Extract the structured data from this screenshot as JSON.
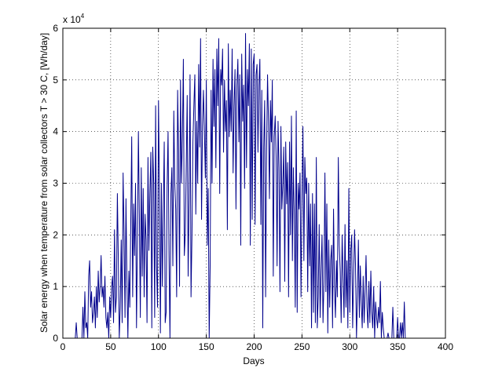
{
  "chart_data": {
    "type": "line",
    "title": "",
    "xlabel": "Days",
    "ylabel": "Solar energy when temperature from solar collectors T > 30 C, [Wh/day]",
    "y_exponent_label": "x 10",
    "y_exponent_power": "4",
    "xlim": [
      0,
      400
    ],
    "ylim": [
      0,
      6
    ],
    "y_scale_factor": 10000,
    "grid": true,
    "line_color": "#00008b",
    "x_ticks": [
      "0",
      "50",
      "100",
      "150",
      "200",
      "250",
      "300",
      "350",
      "400"
    ],
    "y_ticks": [
      "0",
      "1",
      "2",
      "3",
      "4",
      "5",
      "6"
    ],
    "series": [
      {
        "x_start": 1,
        "x_step": 1,
        "values": [
          0,
          0,
          0,
          0,
          0,
          0,
          0,
          0,
          0,
          0,
          0,
          0,
          0,
          0.3,
          0,
          0,
          0,
          0,
          0,
          0,
          0.6,
          0,
          0.9,
          0.2,
          0.3,
          0,
          1.2,
          1.5,
          0.6,
          0.9,
          0.3,
          0.5,
          0.8,
          0.2,
          1.0,
          0.4,
          1.3,
          0.7,
          1.0,
          1.6,
          0.8,
          1.0,
          0.6,
          1.2,
          0.4,
          0.2,
          0.5,
          0,
          0.8,
          0.4,
          1.0,
          1.2,
          0.3,
          2.1,
          0.5,
          0.8,
          2.8,
          1.5,
          0,
          0.6,
          1.9,
          0.3,
          3.2,
          2.0,
          0.4,
          2.7,
          1.1,
          0,
          1.3,
          0.6,
          2.2,
          3.9,
          0.8,
          2.6,
          1.6,
          3.0,
          0.2,
          1.9,
          4.0,
          2.4,
          0.4,
          3.3,
          1.2,
          2.9,
          0.8,
          2.4,
          1.9,
          0.3,
          3.5,
          1.7,
          2.8,
          3.6,
          0.2,
          3.7,
          3.0,
          0.4,
          4.5,
          1.4,
          0.6,
          4.6,
          2.8,
          0.1,
          3.0,
          1.0,
          2.5,
          3.8,
          0.3,
          0.5,
          2.9,
          4.0,
          1.6,
          0,
          2.8,
          3.3,
          1.4,
          4.4,
          3.0,
          2.5,
          0.8,
          4.8,
          3.6,
          1.0,
          5.0,
          3.0,
          3.9,
          5.4,
          1.6,
          2.0,
          3.3,
          4.7,
          1.2,
          2.7,
          5.1,
          0.8,
          2.0,
          3.8,
          4.5,
          5.1,
          2.4,
          4.2,
          3.0,
          5.3,
          3.7,
          5.8,
          2.3,
          4.1,
          4.8,
          4.0,
          3.1,
          5.0,
          1.8,
          2.9,
          0,
          1.4,
          4.8,
          3.0,
          5.4,
          4.1,
          5.2,
          3.3,
          5.6,
          4.5,
          5.8,
          2.8,
          5.2,
          4.9,
          5.6,
          3.6,
          5.0,
          4.0,
          4.6,
          2.1,
          5.7,
          3.9,
          4.8,
          4.0,
          5.6,
          3.2,
          4.5,
          5.2,
          2.5,
          4.9,
          5.4,
          3.8,
          5.1,
          1.8,
          5.5,
          4.2,
          4.9,
          2.9,
          5.9,
          3.3,
          5.2,
          4.5,
          5.7,
          1.8,
          5.6,
          2.3,
          5.3,
          5.5,
          2.2,
          5.1,
          5.3,
          3.6,
          4.9,
          5.4,
          2.2,
          4.8,
          0.2,
          3.7,
          4.6,
          0.8,
          3.6,
          5.1,
          4.2,
          2.7,
          4.6,
          3.8,
          5.0,
          1.2,
          3.9,
          4.3,
          3.5,
          1.4,
          4.2,
          3.3,
          0.9,
          4.1,
          2.5,
          3.0,
          3.7,
          1.1,
          3.8,
          2.6,
          3.4,
          0.8,
          3.8,
          2.0,
          4.3,
          1.5,
          3.3,
          2.4,
          0.6,
          4.4,
          0.5,
          3.0,
          2.5,
          3.2,
          0.8,
          2.7,
          4.1,
          1.5,
          3.5,
          2.8,
          3.1,
          0.9,
          3.0,
          1.4,
          2.6,
          0.2,
          2.8,
          0.5,
          2.6,
          0.3,
          3.5,
          0.2,
          0.8,
          2.2,
          0.4,
          1.3,
          2.0,
          0.3,
          1.1,
          3.2,
          0.9,
          2.6,
          0.1,
          1.9,
          0.6,
          1.5,
          1.8,
          0.2,
          2.5,
          1.0,
          0.4,
          1.5,
          0.8,
          3.5,
          1.8,
          1.3,
          0.3,
          2.0,
          1.2,
          0.4,
          2.2,
          0.6,
          1.5,
          0.2,
          2.9,
          0.5,
          1.7,
          2.0,
          0.2,
          1.2,
          2.1,
          1.4,
          0,
          0.8,
          1.9,
          0.4,
          1.4,
          0.7,
          0.2,
          1.2,
          0.3,
          0.9,
          1.6,
          0.6,
          0.2,
          1.1,
          0.3,
          1.3,
          0.5,
          0.2,
          1.0,
          0,
          0.7,
          0.4,
          0.2,
          0.6,
          0.3,
          1.1,
          0,
          0.5,
          0.2,
          0,
          0,
          0,
          0,
          0.1,
          0,
          0,
          0,
          0,
          0.6,
          0,
          0,
          0,
          0,
          0.4,
          0,
          0,
          0.3,
          0,
          0.3,
          0,
          0.7,
          0,
          0,
          0,
          0,
          0,
          0,
          0,
          0
        ]
      }
    ]
  }
}
